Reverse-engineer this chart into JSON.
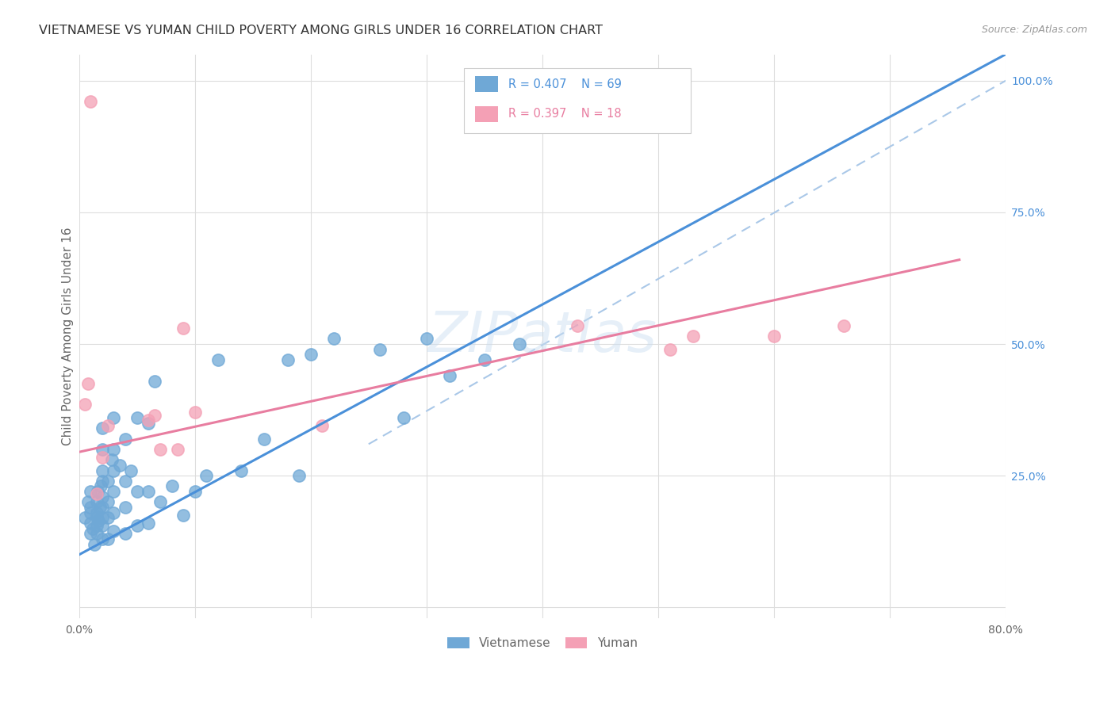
{
  "title": "VIETNAMESE VS YUMAN CHILD POVERTY AMONG GIRLS UNDER 16 CORRELATION CHART",
  "source": "Source: ZipAtlas.com",
  "ylabel": "Child Poverty Among Girls Under 16",
  "watermark": "ZIPatlas",
  "xlim": [
    0,
    0.8
  ],
  "ylim": [
    -0.02,
    1.05
  ],
  "xticks": [
    0.0,
    0.1,
    0.2,
    0.3,
    0.4,
    0.5,
    0.6,
    0.7,
    0.8
  ],
  "xticklabels": [
    "0.0%",
    "",
    "",
    "",
    "",
    "",
    "",
    "",
    "80.0%"
  ],
  "yticks_right": [
    0.0,
    0.25,
    0.5,
    0.75,
    1.0
  ],
  "yticklabels_right": [
    "",
    "25.0%",
    "50.0%",
    "75.0%",
    "100.0%"
  ],
  "blue_color": "#6fa8d6",
  "pink_color": "#f4a0b5",
  "blue_line_color": "#4a90d9",
  "pink_line_color": "#e87da0",
  "dashed_line_color": "#aac8e8",
  "vietnamese_x": [
    0.005,
    0.008,
    0.01,
    0.01,
    0.01,
    0.01,
    0.01,
    0.012,
    0.013,
    0.015,
    0.015,
    0.015,
    0.015,
    0.015,
    0.016,
    0.017,
    0.018,
    0.019,
    0.02,
    0.02,
    0.02,
    0.02,
    0.02,
    0.02,
    0.02,
    0.02,
    0.02,
    0.025,
    0.025,
    0.025,
    0.025,
    0.028,
    0.03,
    0.03,
    0.03,
    0.03,
    0.03,
    0.03,
    0.035,
    0.04,
    0.04,
    0.04,
    0.04,
    0.045,
    0.05,
    0.05,
    0.05,
    0.06,
    0.06,
    0.06,
    0.065,
    0.07,
    0.08,
    0.09,
    0.1,
    0.11,
    0.12,
    0.14,
    0.16,
    0.18,
    0.19,
    0.2,
    0.22,
    0.26,
    0.28,
    0.3,
    0.32,
    0.35,
    0.38
  ],
  "vietnamese_y": [
    0.17,
    0.2,
    0.14,
    0.16,
    0.18,
    0.19,
    0.22,
    0.15,
    0.12,
    0.14,
    0.155,
    0.17,
    0.18,
    0.2,
    0.22,
    0.165,
    0.19,
    0.23,
    0.13,
    0.155,
    0.17,
    0.19,
    0.21,
    0.24,
    0.26,
    0.3,
    0.34,
    0.13,
    0.17,
    0.2,
    0.24,
    0.28,
    0.145,
    0.18,
    0.22,
    0.26,
    0.3,
    0.36,
    0.27,
    0.14,
    0.19,
    0.24,
    0.32,
    0.26,
    0.155,
    0.22,
    0.36,
    0.16,
    0.22,
    0.35,
    0.43,
    0.2,
    0.23,
    0.175,
    0.22,
    0.25,
    0.47,
    0.26,
    0.32,
    0.47,
    0.25,
    0.48,
    0.51,
    0.49,
    0.36,
    0.51,
    0.44,
    0.47,
    0.5
  ],
  "yuman_x": [
    0.005,
    0.008,
    0.01,
    0.015,
    0.02,
    0.025,
    0.06,
    0.065,
    0.07,
    0.085,
    0.09,
    0.1,
    0.21,
    0.43,
    0.51,
    0.53,
    0.6,
    0.66
  ],
  "yuman_y": [
    0.385,
    0.425,
    0.96,
    0.215,
    0.285,
    0.345,
    0.355,
    0.365,
    0.3,
    0.3,
    0.53,
    0.37,
    0.345,
    0.535,
    0.49,
    0.515,
    0.515,
    0.535
  ],
  "blue_trend_x": [
    0.0,
    0.8
  ],
  "blue_trend_y": [
    0.1,
    1.05
  ],
  "pink_trend_x": [
    0.0,
    0.76
  ],
  "pink_trend_y": [
    0.295,
    0.66
  ],
  "dashed_trend_x": [
    0.25,
    0.8
  ],
  "dashed_trend_y": [
    0.31,
    1.0
  ]
}
